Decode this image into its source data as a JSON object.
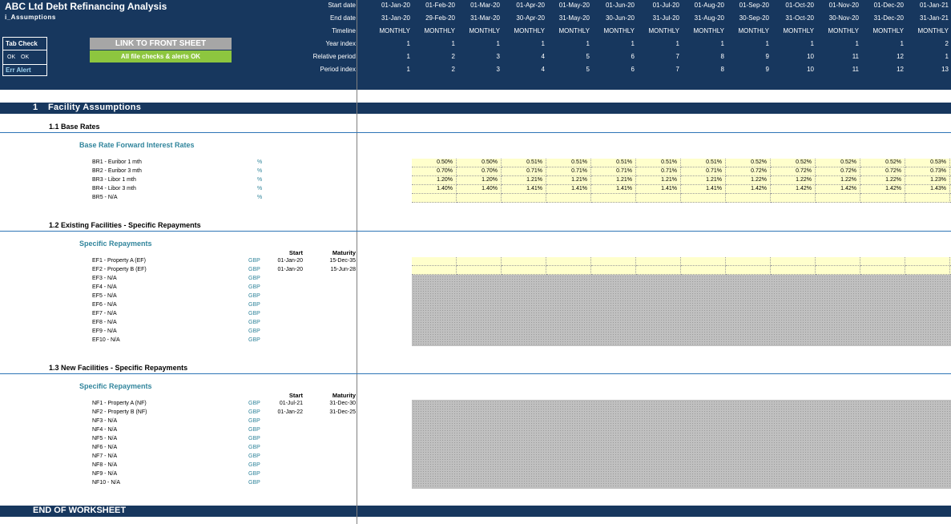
{
  "header": {
    "title": "ABC Ltd Debt Refinancing Analysis",
    "sheet": "i_Assumptions",
    "tab_check": {
      "title": "Tab Check",
      "ok1": "OK",
      "ok2": "OK",
      "err_alert": "Err Alert"
    },
    "link_button": "LINK TO FRONT SHEET",
    "checks_status": "All file checks & alerts OK"
  },
  "timeline": {
    "labels": [
      "Start date",
      "End date",
      "Timeline",
      "Year index",
      "Relative period",
      "Period index"
    ],
    "start_dates": [
      "01-Jan-20",
      "01-Feb-20",
      "01-Mar-20",
      "01-Apr-20",
      "01-May-20",
      "01-Jun-20",
      "01-Jul-20",
      "01-Aug-20",
      "01-Sep-20",
      "01-Oct-20",
      "01-Nov-20",
      "01-Dec-20",
      "01-Jan-21"
    ],
    "end_dates": [
      "31-Jan-20",
      "29-Feb-20",
      "31-Mar-20",
      "30-Apr-20",
      "31-May-20",
      "30-Jun-20",
      "31-Jul-20",
      "31-Aug-20",
      "30-Sep-20",
      "31-Oct-20",
      "30-Nov-20",
      "31-Dec-20",
      "31-Jan-21"
    ],
    "timeline": [
      "MONTHLY",
      "MONTHLY",
      "MONTHLY",
      "MONTHLY",
      "MONTHLY",
      "MONTHLY",
      "MONTHLY",
      "MONTHLY",
      "MONTHLY",
      "MONTHLY",
      "MONTHLY",
      "MONTHLY",
      "MONTHLY"
    ],
    "year_index": [
      "1",
      "1",
      "1",
      "1",
      "1",
      "1",
      "1",
      "1",
      "1",
      "1",
      "1",
      "1",
      "2"
    ],
    "relative_period": [
      "1",
      "2",
      "3",
      "4",
      "5",
      "6",
      "7",
      "8",
      "9",
      "10",
      "11",
      "12",
      "1"
    ],
    "period_index": [
      "1",
      "2",
      "3",
      "4",
      "5",
      "6",
      "7",
      "8",
      "9",
      "10",
      "11",
      "12",
      "13"
    ]
  },
  "sections": {
    "s1": {
      "num": "1",
      "label": "Facility Assumptions"
    },
    "s1_1": {
      "title": "1.1   Base Rates",
      "blue": "Base Rate Forward Interest Rates"
    },
    "s1_2": {
      "title": "1.2   Existing Facilities - Specific Repayments",
      "blue": "Specific Repayments",
      "start_hdr": "Start",
      "maturity_hdr": "Maturity"
    },
    "s1_3": {
      "title": "1.3   New Facilities - Specific Repayments",
      "blue": "Specific Repayments",
      "start_hdr": "Start",
      "maturity_hdr": "Maturity"
    },
    "end": "END OF WORKSHEET"
  },
  "base_rates": [
    {
      "label": "BR1 - Euribor 1 mth",
      "unit": "%",
      "values": [
        "0.50%",
        "0.50%",
        "0.51%",
        "0.51%",
        "0.51%",
        "0.51%",
        "0.51%",
        "0.52%",
        "0.52%",
        "0.52%",
        "0.52%",
        "0.53%",
        "0.53%"
      ]
    },
    {
      "label": "BR2 - Euribor 3 mth",
      "unit": "%",
      "values": [
        "0.70%",
        "0.70%",
        "0.71%",
        "0.71%",
        "0.71%",
        "0.71%",
        "0.71%",
        "0.72%",
        "0.72%",
        "0.72%",
        "0.72%",
        "0.73%",
        "0.73%"
      ]
    },
    {
      "label": "BR3 - Libor 1 mth",
      "unit": "%",
      "values": [
        "1.20%",
        "1.20%",
        "1.21%",
        "1.21%",
        "1.21%",
        "1.21%",
        "1.21%",
        "1.22%",
        "1.22%",
        "1.22%",
        "1.22%",
        "1.23%",
        "1.23%"
      ]
    },
    {
      "label": "BR4 - Libor 3 mth",
      "unit": "%",
      "values": [
        "1.40%",
        "1.40%",
        "1.41%",
        "1.41%",
        "1.41%",
        "1.41%",
        "1.41%",
        "1.42%",
        "1.42%",
        "1.42%",
        "1.42%",
        "1.43%",
        "1.43%"
      ]
    },
    {
      "label": "BR5 - N/A",
      "unit": "%",
      "values": [
        "",
        "",
        "",
        "",
        "",
        "",
        "",
        "",
        "",
        "",
        "",
        "",
        ""
      ]
    }
  ],
  "existing_facilities": [
    {
      "label": "EF1 - Property A (EF)",
      "ccy": "GBP",
      "start": "01-Jan-20",
      "maturity": "15-Dec-35"
    },
    {
      "label": "EF2 - Property B (EF)",
      "ccy": "GBP",
      "start": "01-Jan-20",
      "maturity": "15-Jun-28"
    },
    {
      "label": "EF3 - N/A",
      "ccy": "GBP",
      "start": "",
      "maturity": ""
    },
    {
      "label": "EF4 - N/A",
      "ccy": "GBP",
      "start": "",
      "maturity": ""
    },
    {
      "label": "EF5 - N/A",
      "ccy": "GBP",
      "start": "",
      "maturity": ""
    },
    {
      "label": "EF6 - N/A",
      "ccy": "GBP",
      "start": "",
      "maturity": ""
    },
    {
      "label": "EF7 - N/A",
      "ccy": "GBP",
      "start": "",
      "maturity": ""
    },
    {
      "label": "EF8 - N/A",
      "ccy": "GBP",
      "start": "",
      "maturity": ""
    },
    {
      "label": "EF9 - N/A",
      "ccy": "GBP",
      "start": "",
      "maturity": ""
    },
    {
      "label": "EF10 - N/A",
      "ccy": "GBP",
      "start": "",
      "maturity": ""
    }
  ],
  "new_facilities": [
    {
      "label": "NF1 - Property A (NF)",
      "ccy": "GBP",
      "start": "01-Jul-21",
      "maturity": "31-Dec-30"
    },
    {
      "label": "NF2 - Property B (NF)",
      "ccy": "GBP",
      "start": "01-Jan-22",
      "maturity": "31-Dec-25"
    },
    {
      "label": "NF3 - N/A",
      "ccy": "GBP",
      "start": "",
      "maturity": ""
    },
    {
      "label": "NF4 - N/A",
      "ccy": "GBP",
      "start": "",
      "maturity": ""
    },
    {
      "label": "NF5 - N/A",
      "ccy": "GBP",
      "start": "",
      "maturity": ""
    },
    {
      "label": "NF6 - N/A",
      "ccy": "GBP",
      "start": "",
      "maturity": ""
    },
    {
      "label": "NF7 - N/A",
      "ccy": "GBP",
      "start": "",
      "maturity": ""
    },
    {
      "label": "NF8 - N/A",
      "ccy": "GBP",
      "start": "",
      "maturity": ""
    },
    {
      "label": "NF9 - N/A",
      "ccy": "GBP",
      "start": "",
      "maturity": ""
    },
    {
      "label": "NF10 - N/A",
      "ccy": "GBP",
      "start": "",
      "maturity": ""
    }
  ],
  "colors": {
    "header_bg": "#17375e",
    "input_cell": "#ffffcc",
    "ok_green": "#8dc63f",
    "link_grey": "#a6a6a6",
    "section_blue": "#31859c"
  }
}
